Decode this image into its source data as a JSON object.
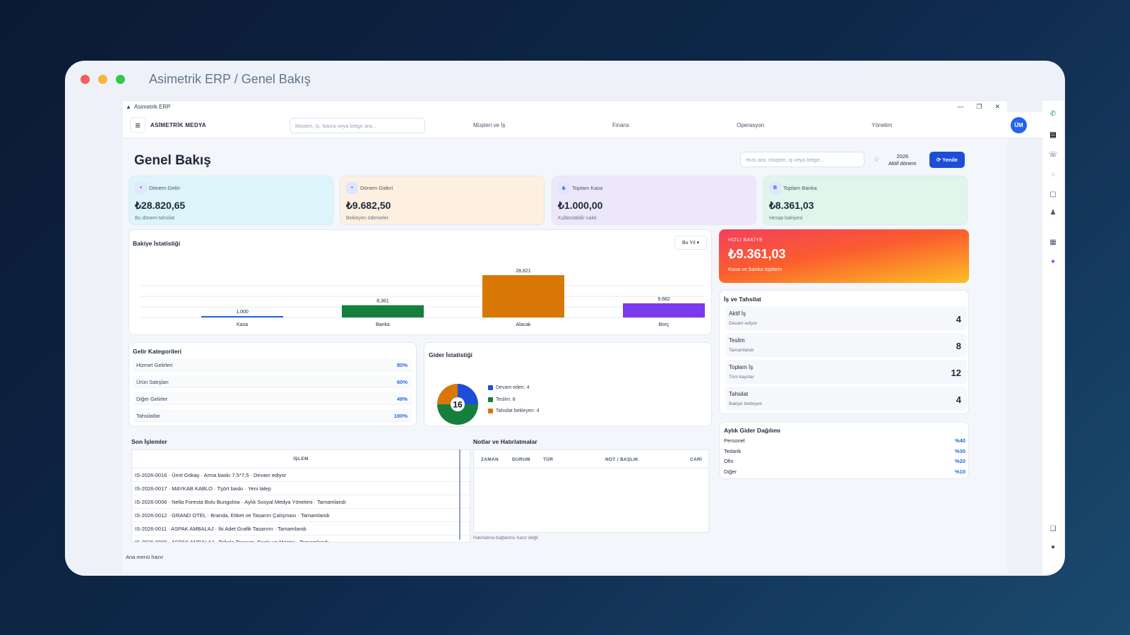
{
  "window_title": "Asimetrik ERP / Genel Bakış",
  "app_title": "Asimetrik ERP",
  "brand": "ASİMETRİK MEDYA",
  "global_search_placeholder": "Müşteri, iş, fatura veya belge ara...",
  "nav": [
    "Müşteri ve İş",
    "Finans",
    "Operasyon",
    "Yönetim"
  ],
  "avatar": "ÜM",
  "page_title": "Genel Bakış",
  "quick_search_placeholder": "Hızlı ara: müşteri, iş veya belge...",
  "period": {
    "year": "2026",
    "label": "Aktif dönem"
  },
  "refresh_label": "⟳ Yenile",
  "stats": [
    {
      "icon": "•",
      "label": "Dönem Geliri",
      "value": "₺28.820,65",
      "sub": "Bu dönem tahsilat",
      "bg": "#ddf4fb"
    },
    {
      "icon": "•",
      "label": "Dönem Gideri",
      "value": "₺9.682,50",
      "sub": "Bekleyen ödemeler",
      "bg": "#fdf0e0"
    },
    {
      "icon": "₺",
      "label": "Toplam Kasa",
      "value": "₺1.000,00",
      "sub": "Kullanılabilir nakit",
      "bg": "#ede7fb"
    },
    {
      "icon": "B",
      "label": "Toplam Banka",
      "value": "₺8.361,03",
      "sub": "Hesap bakiyesi",
      "bg": "#dff6ea"
    }
  ],
  "balance_stats": {
    "title": "Bakiye İstatistiği",
    "range": "Bu Yıl ▾"
  },
  "chart_data": {
    "type": "bar",
    "categories": [
      "Kasa",
      "Banka",
      "Alacak",
      "Borç"
    ],
    "values": [
      1000,
      8361,
      28821,
      9682
    ],
    "value_labels": [
      "1,000",
      "8,361",
      "28,821",
      "9,682"
    ],
    "colors": [
      "#2563eb",
      "#15803d",
      "#d97706",
      "#7c3aed"
    ]
  },
  "quick_balance": {
    "label": "HIZLI BAKİYE",
    "value": "₺9.361,03",
    "sub": "Kasa ve banka toplamı"
  },
  "jobs": {
    "title": "İş ve Tahsilat",
    "rows": [
      {
        "label": "Aktif İş",
        "sub": "Devam ediyor",
        "value": "4"
      },
      {
        "label": "Teslim",
        "sub": "Tamamlandı",
        "value": "8"
      },
      {
        "label": "Toplam İş",
        "sub": "Tüm kayıtlar",
        "value": "12"
      },
      {
        "label": "Tahsilat",
        "sub": "Bakiye bekleyen",
        "value": "4"
      }
    ]
  },
  "income_categories": {
    "title": "Gelir Kategorileri",
    "rows": [
      {
        "label": "Hizmet Gelirleri",
        "value": "80%"
      },
      {
        "label": "Ürün Satışları",
        "value": "60%"
      },
      {
        "label": "Diğer Gelirler",
        "value": "49%"
      },
      {
        "label": "Tahsilatlar",
        "value": "100%"
      }
    ]
  },
  "expense_stats": {
    "title": "Gider İstatistiği",
    "total": "16",
    "slices": [
      {
        "label": "Devam eden: 4",
        "value": 4,
        "color": "#1d4ed8"
      },
      {
        "label": "Teslim: 8",
        "value": 8,
        "color": "#15803d"
      },
      {
        "label": "Tahsilat bekleyen: 4",
        "value": 4,
        "color": "#d97706"
      }
    ]
  },
  "monthly_expense": {
    "title": "Aylık Gider Dağılımı",
    "rows": [
      {
        "label": "Personel",
        "value": "%40"
      },
      {
        "label": "Tedarik",
        "value": "%30"
      },
      {
        "label": "Ofis",
        "value": "%20"
      },
      {
        "label": "Diğer",
        "value": "%10"
      }
    ]
  },
  "recent": {
    "title": "Son İşlemler",
    "column": "İŞLEM",
    "rows": [
      "IS-2026-0016 · Ümit Gökay · Arma baskı 7,5*7,5 · Devam ediyor",
      "IS-2026-0017 · MAYKAB KABLO · Tşört baskı · Yeni talep",
      "IS-2026-0006 · Nella Foresta Bolu Bungolow · Aylık Sosyal Medya Yönetimi · Tamamlandı",
      "IS-2026-0012 · GRAND OTEL · Branda, Etiket ve Tasarım Çalışması · Tamamlandı",
      "IS-2026-0011 · ASPAK AMBALAJ · İki Adet Grafik Tasarımı · Tamamlandı",
      "IS-2026-0009 · ASPAK AMBALAJ · Tabela Tasarım, Baskı ve Montaj · Tamamlandı"
    ]
  },
  "notes": {
    "title": "Notlar ve Hatırlatmalar",
    "columns": [
      "ZAMAN",
      "DURUM",
      "TÜR",
      "NOT / BAŞLIK",
      "CARİ"
    ],
    "footer": "Hatırlatma bağlantısı hazır değil"
  },
  "status_text": "Ana menü hazır"
}
